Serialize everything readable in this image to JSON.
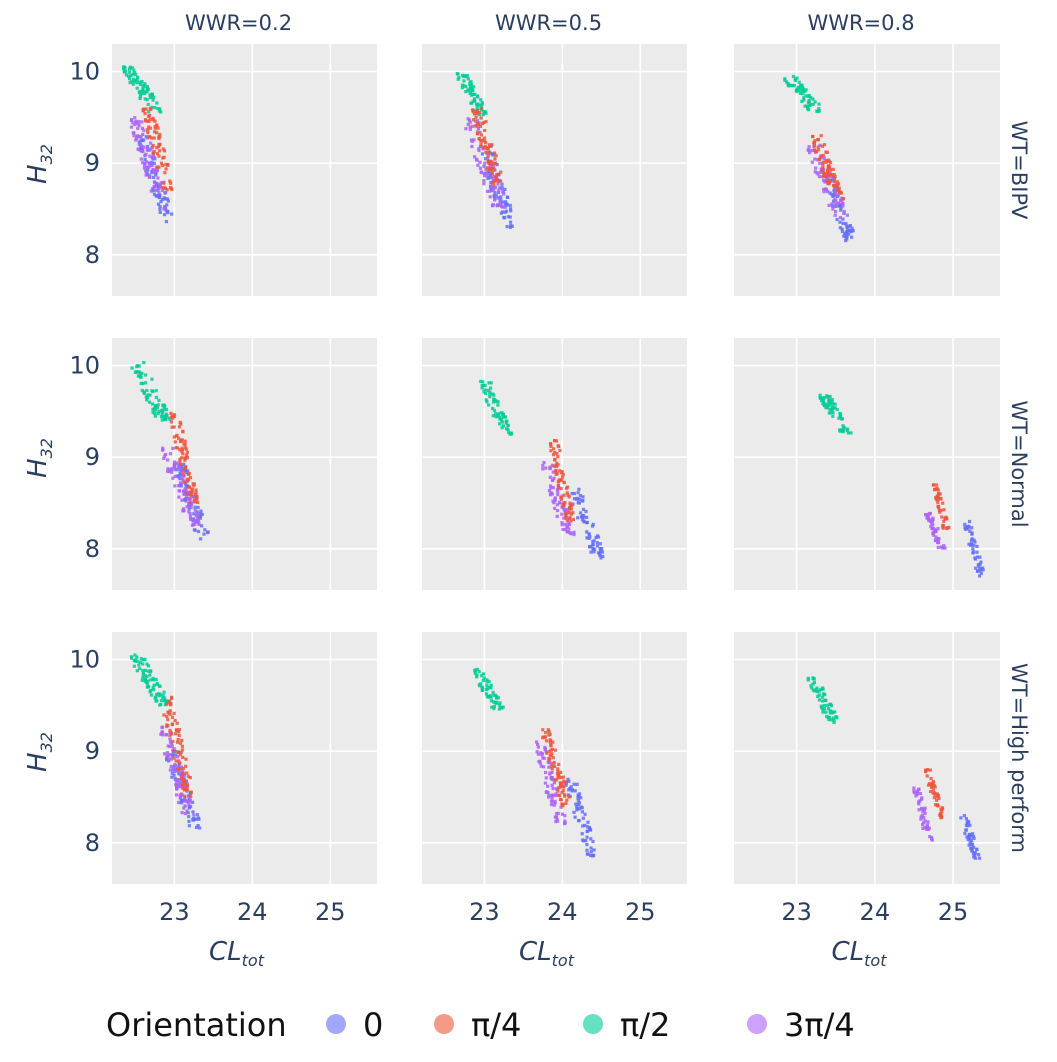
{
  "chart_data": {
    "type": "scatter",
    "title": "",
    "col_facet_labels": [
      "WWR=0.2",
      "WWR=0.5",
      "WWR=0.8"
    ],
    "row_facet_labels": [
      "WT=BIPV",
      "WT=Normal",
      "WT=High perform"
    ],
    "xlabel": "CL",
    "xlabel_sub": "tot",
    "ylabel": "H",
    "ylabel_sub": "32",
    "xlim": [
      22.2,
      25.6
    ],
    "ylim": [
      7.55,
      10.3
    ],
    "x_ticks": [
      "23",
      "24",
      "25"
    ],
    "x_tick_values": [
      23,
      24,
      25
    ],
    "y_ticks": [
      "8",
      "9",
      "10"
    ],
    "y_tick_values": [
      8,
      9,
      10
    ],
    "grid": true,
    "legend": {
      "title": "Orientation",
      "placement": "bottom",
      "entries": [
        {
          "key": "o0",
          "label": "0",
          "color": "#636efa"
        },
        {
          "key": "o1",
          "label": "π/4",
          "color": "#ef553b"
        },
        {
          "key": "o2",
          "label": "π/2",
          "color": "#00cc96"
        },
        {
          "key": "o3",
          "label": "3π/4",
          "color": "#ab63fa"
        }
      ]
    },
    "series_order": [
      "o2",
      "o0",
      "o3",
      "o1"
    ],
    "panels": [
      {
        "row": 0,
        "col": 0,
        "clusters": [
          {
            "series": "o2",
            "x": [
              22.35,
              22.85
            ],
            "y": [
              9.55,
              10.05
            ],
            "n": 70
          },
          {
            "series": "o0",
            "x": [
              22.55,
              23.0
            ],
            "y": [
              8.35,
              9.3
            ],
            "n": 75
          },
          {
            "series": "o3",
            "x": [
              22.45,
              22.95
            ],
            "y": [
              8.5,
              9.5
            ],
            "n": 75
          },
          {
            "series": "o1",
            "x": [
              22.6,
              23.0
            ],
            "y": [
              8.7,
              9.6
            ],
            "n": 70
          }
        ]
      },
      {
        "row": 0,
        "col": 1,
        "clusters": [
          {
            "series": "o2",
            "x": [
              22.65,
              23.05
            ],
            "y": [
              9.5,
              10.0
            ],
            "n": 65
          },
          {
            "series": "o0",
            "x": [
              22.95,
              23.4
            ],
            "y": [
              8.3,
              9.2
            ],
            "n": 75
          },
          {
            "series": "o3",
            "x": [
              22.75,
              23.3
            ],
            "y": [
              8.5,
              9.5
            ],
            "n": 75
          },
          {
            "series": "o1",
            "x": [
              22.85,
              23.25
            ],
            "y": [
              8.75,
              9.6
            ],
            "n": 70
          }
        ]
      },
      {
        "row": 0,
        "col": 2,
        "clusters": [
          {
            "series": "o2",
            "x": [
              22.85,
              23.35
            ],
            "y": [
              9.55,
              9.95
            ],
            "n": 60
          },
          {
            "series": "o0",
            "x": [
              23.35,
              23.75
            ],
            "y": [
              8.15,
              8.9
            ],
            "n": 65
          },
          {
            "series": "o3",
            "x": [
              23.15,
              23.65
            ],
            "y": [
              8.4,
              9.2
            ],
            "n": 75
          },
          {
            "series": "o1",
            "x": [
              23.2,
              23.6
            ],
            "y": [
              8.6,
              9.3
            ],
            "n": 65
          }
        ]
      },
      {
        "row": 1,
        "col": 0,
        "clusters": [
          {
            "series": "o2",
            "x": [
              22.45,
              22.95
            ],
            "y": [
              9.4,
              10.05
            ],
            "n": 75
          },
          {
            "series": "o0",
            "x": [
              23.0,
              23.45
            ],
            "y": [
              8.1,
              8.95
            ],
            "n": 75
          },
          {
            "series": "o3",
            "x": [
              22.85,
              23.35
            ],
            "y": [
              8.25,
              9.1
            ],
            "n": 75
          },
          {
            "series": "o1",
            "x": [
              22.95,
              23.3
            ],
            "y": [
              8.5,
              9.5
            ],
            "n": 75
          }
        ]
      },
      {
        "row": 1,
        "col": 1,
        "clusters": [
          {
            "series": "o2",
            "x": [
              22.95,
              23.35
            ],
            "y": [
              9.25,
              9.85
            ],
            "n": 60
          },
          {
            "series": "o0",
            "x": [
              24.1,
              24.55
            ],
            "y": [
              7.9,
              8.65
            ],
            "n": 65
          },
          {
            "series": "o3",
            "x": [
              23.75,
              24.15
            ],
            "y": [
              8.15,
              8.95
            ],
            "n": 70
          },
          {
            "series": "o1",
            "x": [
              23.85,
              24.15
            ],
            "y": [
              8.3,
              9.2
            ],
            "n": 70
          }
        ]
      },
      {
        "row": 1,
        "col": 2,
        "clusters": [
          {
            "series": "o2",
            "x": [
              23.3,
              23.7
            ],
            "y": [
              9.25,
              9.7
            ],
            "n": 60
          },
          {
            "series": "o0",
            "x": [
              25.15,
              25.4
            ],
            "y": [
              7.7,
              8.3
            ],
            "n": 45
          },
          {
            "series": "o3",
            "x": [
              24.65,
              24.9
            ],
            "y": [
              8.0,
              8.4
            ],
            "n": 45
          },
          {
            "series": "o1",
            "x": [
              24.75,
              24.95
            ],
            "y": [
              8.2,
              8.7
            ],
            "n": 45
          }
        ]
      },
      {
        "row": 2,
        "col": 0,
        "clusters": [
          {
            "series": "o2",
            "x": [
              22.45,
              22.95
            ],
            "y": [
              9.5,
              10.05
            ],
            "n": 75
          },
          {
            "series": "o0",
            "x": [
              22.9,
              23.35
            ],
            "y": [
              8.15,
              9.0
            ],
            "n": 75
          },
          {
            "series": "o3",
            "x": [
              22.8,
              23.25
            ],
            "y": [
              8.3,
              9.3
            ],
            "n": 75
          },
          {
            "series": "o1",
            "x": [
              22.85,
              23.25
            ],
            "y": [
              8.5,
              9.6
            ],
            "n": 75
          }
        ]
      },
      {
        "row": 2,
        "col": 1,
        "clusters": [
          {
            "series": "o2",
            "x": [
              22.85,
              23.25
            ],
            "y": [
              9.45,
              9.9
            ],
            "n": 55
          },
          {
            "series": "o0",
            "x": [
              24.05,
              24.45
            ],
            "y": [
              7.85,
              8.7
            ],
            "n": 65
          },
          {
            "series": "o3",
            "x": [
              23.65,
              24.05
            ],
            "y": [
              8.2,
              9.1
            ],
            "n": 70
          },
          {
            "series": "o1",
            "x": [
              23.75,
              24.1
            ],
            "y": [
              8.4,
              9.25
            ],
            "n": 70
          }
        ]
      },
      {
        "row": 2,
        "col": 2,
        "clusters": [
          {
            "series": "o2",
            "x": [
              23.15,
              23.55
            ],
            "y": [
              9.3,
              9.8
            ],
            "n": 55
          },
          {
            "series": "o0",
            "x": [
              25.1,
              25.35
            ],
            "y": [
              7.8,
              8.3
            ],
            "n": 45
          },
          {
            "series": "o3",
            "x": [
              24.5,
              24.75
            ],
            "y": [
              8.0,
              8.6
            ],
            "n": 45
          },
          {
            "series": "o1",
            "x": [
              24.65,
              24.9
            ],
            "y": [
              8.25,
              8.8
            ],
            "n": 45
          }
        ]
      }
    ]
  }
}
